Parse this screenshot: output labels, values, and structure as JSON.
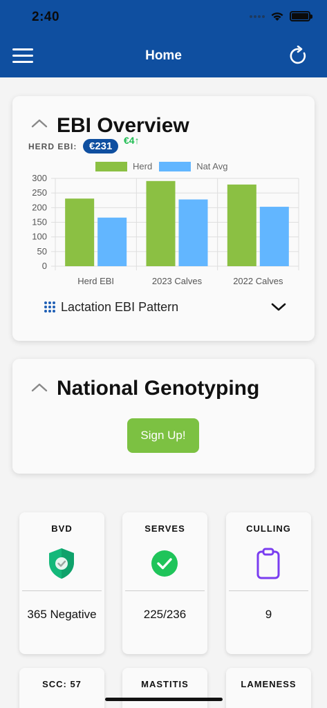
{
  "status_bar": {
    "time": "2:40"
  },
  "header": {
    "title": "Home"
  },
  "ebi_card": {
    "title": "EBI Overview",
    "herd_ebi_label": "HERD EBI:",
    "herd_ebi_value": "€231",
    "herd_ebi_delta": "€4↑",
    "pattern_label": "Lactation EBI Pattern"
  },
  "chart_data": {
    "type": "bar",
    "categories": [
      "Herd EBI",
      "2023 Calves",
      "2022 Calves"
    ],
    "series": [
      {
        "name": "Herd",
        "values": [
          231,
          291,
          279
        ],
        "color": "#8bc043"
      },
      {
        "name": "Nat Avg",
        "values": [
          166,
          228,
          203
        ],
        "color": "#62b6ff"
      }
    ],
    "yticks": [
      "0",
      "50",
      "100",
      "150",
      "200",
      "250",
      "300"
    ],
    "ylim": [
      0,
      300
    ],
    "grid": true,
    "legend": "top"
  },
  "geno_card": {
    "title": "National Genotyping",
    "signup_label": "Sign Up!"
  },
  "tiles": [
    {
      "title": "BVD",
      "value": "365 Negative",
      "icon": "shield-check-icon"
    },
    {
      "title": "SERVES",
      "value": "225/236",
      "icon": "check-circle-icon"
    },
    {
      "title": "CULLING",
      "value": "9",
      "icon": "clipboard-icon"
    },
    {
      "title": "SCC: 57",
      "value": "",
      "icon": "gauge-icon"
    },
    {
      "title": "MASTITIS",
      "value": "",
      "icon": "udder-icon"
    },
    {
      "title": "LAMENESS",
      "value": "",
      "icon": "lameness-icon"
    }
  ],
  "colors": {
    "brand": "#0f4fa0",
    "accent_green": "#7cc142",
    "delta_green": "#1fbd52"
  }
}
